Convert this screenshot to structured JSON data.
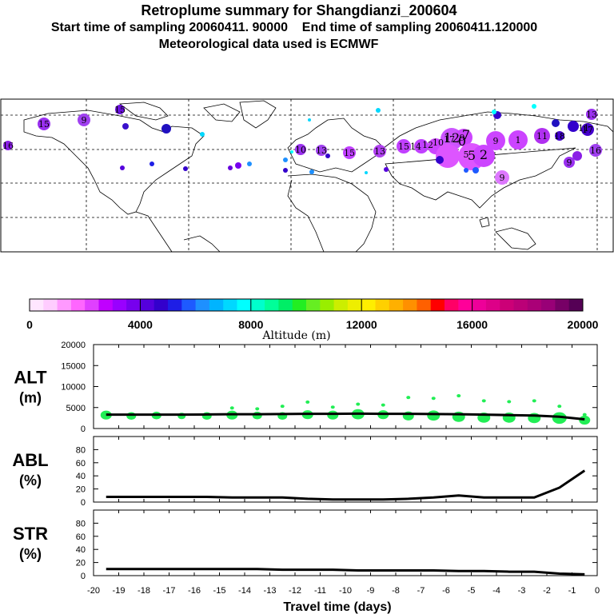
{
  "title": "Retroplume summary for Shangdianzi_200604",
  "subtitle_start": "Start time of sampling 20060411. 90000",
  "subtitle_end": "End time of sampling 20060411.120000",
  "subtitle_met": "Meteorological data used is ECMWF",
  "colorbar": {
    "label": "Altitude (m)",
    "ticks": [
      "0",
      "4000",
      "8000",
      "12000",
      "16000",
      "20000"
    ],
    "colors": [
      "#ffe6ff",
      "#ffccff",
      "#ff99ff",
      "#ff66ff",
      "#e040ff",
      "#c000ff",
      "#9900ff",
      "#7700ee",
      "#5500dd",
      "#3300cc",
      "#1e1ee6",
      "#1e5aff",
      "#1e90ff",
      "#00b4ff",
      "#00d8ff",
      "#00ffff",
      "#00ffcc",
      "#00ff99",
      "#00ee66",
      "#22ee22",
      "#66ee22",
      "#99ee00",
      "#ccee00",
      "#eeee00",
      "#ffee00",
      "#ffd000",
      "#ffb000",
      "#ff9000",
      "#ff6000",
      "#ff0000",
      "#ff0066",
      "#ff0099",
      "#ee0099",
      "#dd0088",
      "#cc0077",
      "#bb0077",
      "#aa0077",
      "#990077",
      "#770066",
      "#550055"
    ]
  },
  "map_labels": [
    "16",
    "15",
    "9",
    "15",
    "10",
    "13",
    "15",
    "13",
    "15",
    "14",
    "12",
    "10",
    "17",
    "9",
    "7",
    "5",
    "2",
    "12",
    "0",
    "9",
    "1",
    "11",
    "18",
    "17",
    "16",
    "9",
    "13",
    "11",
    "5",
    "9"
  ],
  "chart_data": [
    {
      "type": "scatter+line",
      "panel": "ALT",
      "ylabel": "ALT\n(m)",
      "ylim": [
        0,
        20000
      ],
      "yticks": [
        "0",
        "5000",
        "10000",
        "15000",
        "20000"
      ],
      "x": [
        -19.5,
        -18.5,
        -17.5,
        -16.5,
        -15.5,
        -14.5,
        -13.5,
        -12.5,
        -11.5,
        -10.5,
        -9.5,
        -8.5,
        -7.5,
        -6.5,
        -5.5,
        -4.5,
        -3.5,
        -2.5,
        -1.5,
        -0.5
      ],
      "mean_altitude": [
        3300,
        3300,
        3300,
        3300,
        3350,
        3400,
        3400,
        3450,
        3500,
        3500,
        3550,
        3500,
        3500,
        3450,
        3400,
        3300,
        3200,
        3100,
        2800,
        2200
      ],
      "blob_altitude": [
        3200,
        3000,
        3100,
        3000,
        3000,
        3200,
        3100,
        3000,
        3300,
        3200,
        3400,
        3300,
        3000,
        3100,
        2800,
        2600,
        2600,
        2500,
        2500,
        2000
      ],
      "blob_size": [
        7,
        6,
        6,
        5,
        6,
        7,
        6,
        6,
        7,
        7,
        8,
        7,
        7,
        8,
        8,
        8,
        8,
        8,
        9,
        7
      ],
      "upper_points": [
        [
          -14.5,
          4900
        ],
        [
          -13.5,
          4700
        ],
        [
          -12.5,
          5300
        ],
        [
          -11.5,
          6300
        ],
        [
          -10.5,
          5100
        ],
        [
          -9.5,
          5800
        ],
        [
          -8.5,
          5600
        ],
        [
          -7.5,
          7400
        ],
        [
          -6.5,
          7200
        ],
        [
          -5.5,
          7800
        ],
        [
          -4.5,
          6600
        ],
        [
          -3.5,
          6400
        ],
        [
          -2.5,
          6600
        ],
        [
          -1.5,
          5300
        ],
        [
          -0.5,
          3300
        ]
      ]
    },
    {
      "type": "line",
      "panel": "ABL",
      "ylabel": "ABL\n(%)",
      "ylim": [
        0,
        100
      ],
      "yticks": [
        "0",
        "20",
        "40",
        "60",
        "80"
      ],
      "x": [
        -19.5,
        -18.5,
        -17.5,
        -16.5,
        -15.5,
        -14.5,
        -13.5,
        -12.5,
        -11.5,
        -10.5,
        -9.5,
        -8.5,
        -7.5,
        -6.5,
        -5.5,
        -4.5,
        -3.5,
        -2.5,
        -1.5,
        -0.5
      ],
      "values": [
        8,
        8,
        8,
        8,
        8,
        7,
        7,
        7,
        5,
        4,
        4,
        4,
        5,
        7,
        10,
        7,
        7,
        7,
        22,
        48
      ]
    },
    {
      "type": "line",
      "panel": "STR",
      "ylabel": "STR\n(%)",
      "ylim": [
        0,
        100
      ],
      "yticks": [
        "0",
        "20",
        "40",
        "60",
        "80"
      ],
      "x": [
        -19.5,
        -18.5,
        -17.5,
        -16.5,
        -15.5,
        -14.5,
        -13.5,
        -12.5,
        -11.5,
        -10.5,
        -9.5,
        -8.5,
        -7.5,
        -6.5,
        -5.5,
        -4.5,
        -3.5,
        -2.5,
        -1.5,
        -0.5
      ],
      "values": [
        10,
        10,
        10,
        10,
        10,
        10,
        10,
        9,
        9,
        9,
        8,
        8,
        8,
        8,
        7,
        7,
        6,
        6,
        3,
        2
      ],
      "xlabel": "Travel time (days)",
      "xticks": [
        "-20",
        "-19",
        "-18",
        "-17",
        "-16",
        "-15",
        "-14",
        "-13",
        "-12",
        "-11",
        "-10",
        "-9",
        "-8",
        "-7",
        "-6",
        "-5",
        "-4",
        "-3",
        "-2",
        "-1",
        "0"
      ]
    }
  ]
}
